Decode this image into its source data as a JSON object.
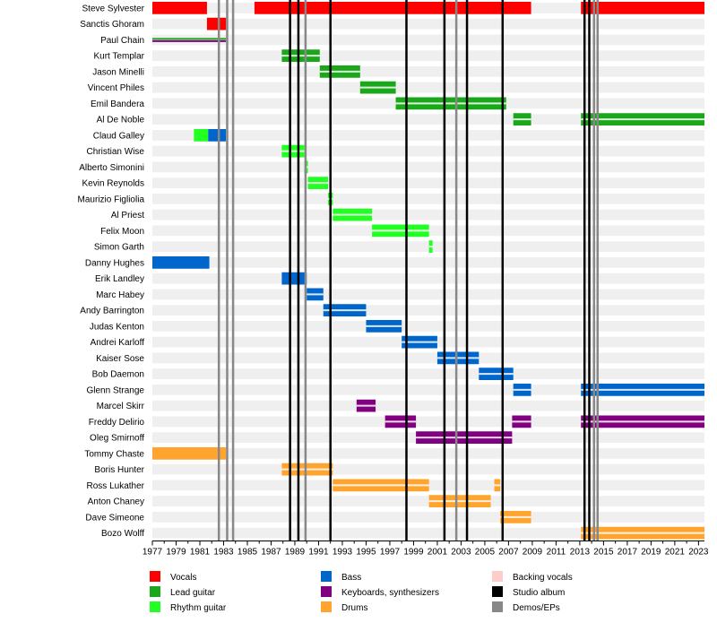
{
  "chart_data": {
    "type": "timeline",
    "x_range": [
      1977,
      2023.5
    ],
    "x_ticks": [
      1977,
      1979,
      1981,
      1983,
      1985,
      1987,
      1989,
      1991,
      1993,
      1995,
      1997,
      1999,
      2001,
      2003,
      2005,
      2007,
      2009,
      2011,
      2013,
      2015,
      2017,
      2019,
      2021,
      2023
    ],
    "roles": {
      "vocals": {
        "label": "Vocals",
        "color": "#ff0000"
      },
      "lead": {
        "label": "Lead guitar",
        "color": "#1aa81a"
      },
      "rhythm": {
        "label": "Rhythm guitar",
        "color": "#22ff22"
      },
      "bass": {
        "label": "Bass",
        "color": "#0066cc"
      },
      "keys": {
        "label": "Keyboards, synthesizers",
        "color": "#800080"
      },
      "drums": {
        "label": "Drums",
        "color": "#ffa42e"
      },
      "backing": {
        "label": "Backing vocals",
        "color": "#ffcccc"
      },
      "studio": {
        "label": "Studio album",
        "color": "#000000"
      },
      "demos": {
        "label": "Demos/EPs",
        "color": "#888888"
      }
    },
    "legend": {
      "columns": [
        [
          "vocals",
          "lead",
          "rhythm"
        ],
        [
          "bass",
          "keys",
          "drums"
        ],
        [
          "backing",
          "studio",
          "demos"
        ]
      ]
    },
    "members": [
      {
        "name": "Steve Sylvester",
        "periods": [
          {
            "role": "vocals",
            "from": 1977,
            "to": 1981.6
          },
          {
            "role": "vocals",
            "from": 1985.6,
            "to": 2008.9
          },
          {
            "role": "vocals",
            "from": 2013.1,
            "to": 2023.5
          }
        ]
      },
      {
        "name": "Sanctis Ghoram",
        "periods": [
          {
            "role": "vocals",
            "from": 1981.6,
            "to": 1983.2
          }
        ]
      },
      {
        "name": "Paul Chain",
        "periods": [
          {
            "role": "lead",
            "from": 1977,
            "to": 1983.2
          },
          {
            "role": "keys",
            "from": 1977,
            "to": 1983.2
          }
        ]
      },
      {
        "name": "Kurt Templar",
        "periods": [
          {
            "role": "lead",
            "from": 1987.9,
            "to": 1991.1
          }
        ]
      },
      {
        "name": "Jason Minelli",
        "periods": [
          {
            "role": "lead",
            "from": 1991.1,
            "to": 1994.5
          }
        ]
      },
      {
        "name": "Vincent Philes",
        "periods": [
          {
            "role": "lead",
            "from": 1994.5,
            "to": 1997.5
          }
        ]
      },
      {
        "name": "Emil Bandera",
        "periods": [
          {
            "role": "lead",
            "from": 1997.5,
            "to": 2006.8
          }
        ]
      },
      {
        "name": "Al De Noble",
        "periods": [
          {
            "role": "lead",
            "from": 2007.4,
            "to": 2008.9
          },
          {
            "role": "lead",
            "from": 2013.1,
            "to": 2023.5
          }
        ]
      },
      {
        "name": "Claud Galley",
        "periods": [
          {
            "role": "rhythm",
            "from": 1980.5,
            "to": 1981.7
          },
          {
            "role": "bass",
            "from": 1981.7,
            "to": 1983.2
          }
        ]
      },
      {
        "name": "Christian Wise",
        "periods": [
          {
            "role": "rhythm",
            "from": 1987.9,
            "to": 1989.8
          }
        ]
      },
      {
        "name": "Alberto Simonini",
        "periods": [
          {
            "role": "rhythm",
            "from": 1989.8,
            "to": 1990.1
          }
        ]
      },
      {
        "name": "Kevin Reynolds",
        "periods": [
          {
            "role": "rhythm",
            "from": 1990.1,
            "to": 1991.8
          }
        ]
      },
      {
        "name": "Maurizio Figliolia",
        "periods": [
          {
            "role": "rhythm",
            "from": 1991.8,
            "to": 1992.2
          }
        ]
      },
      {
        "name": "Al Priest",
        "periods": [
          {
            "role": "rhythm",
            "from": 1992.2,
            "to": 1995.5
          }
        ]
      },
      {
        "name": "Felix Moon",
        "periods": [
          {
            "role": "rhythm",
            "from": 1995.5,
            "to": 2000.3
          }
        ]
      },
      {
        "name": "Simon Garth",
        "periods": [
          {
            "role": "rhythm",
            "from": 2000.3,
            "to": 2000.6
          }
        ]
      },
      {
        "name": "Danny Hughes",
        "periods": [
          {
            "role": "bass",
            "from": 1977,
            "to": 1981.8
          }
        ]
      },
      {
        "name": "Erik Landley",
        "periods": [
          {
            "role": "bass",
            "from": 1987.9,
            "to": 1990
          }
        ]
      },
      {
        "name": "Marc Habey",
        "periods": [
          {
            "role": "bass",
            "from": 1990,
            "to": 1991.4
          }
        ]
      },
      {
        "name": "Andy Barrington",
        "periods": [
          {
            "role": "bass",
            "from": 1991.4,
            "to": 1995
          }
        ]
      },
      {
        "name": "Judas Kenton",
        "periods": [
          {
            "role": "bass",
            "from": 1995,
            "to": 1998
          }
        ]
      },
      {
        "name": "Andrei Karloff",
        "periods": [
          {
            "role": "bass",
            "from": 1998,
            "to": 2001
          }
        ]
      },
      {
        "name": "Kaiser Sose",
        "periods": [
          {
            "role": "bass",
            "from": 2001,
            "to": 2004.5
          }
        ]
      },
      {
        "name": "Bob Daemon",
        "periods": [
          {
            "role": "bass",
            "from": 2004.5,
            "to": 2007.4
          }
        ]
      },
      {
        "name": "Glenn Strange",
        "periods": [
          {
            "role": "bass",
            "from": 2007.4,
            "to": 2008.9
          },
          {
            "role": "bass",
            "from": 2013.1,
            "to": 2023.5
          }
        ]
      },
      {
        "name": "Marcel Skirr",
        "periods": [
          {
            "role": "keys",
            "from": 1994.2,
            "to": 1995.8
          }
        ]
      },
      {
        "name": "Freddy Delirio",
        "periods": [
          {
            "role": "keys",
            "from": 1996.6,
            "to": 1999.2
          },
          {
            "role": "keys",
            "from": 2007.3,
            "to": 2008.9
          },
          {
            "role": "keys",
            "from": 2013.1,
            "to": 2023.5
          }
        ]
      },
      {
        "name": "Oleg Smirnoff",
        "periods": [
          {
            "role": "keys",
            "from": 1999.2,
            "to": 2007.3
          }
        ]
      },
      {
        "name": "Tommy Chaste",
        "periods": [
          {
            "role": "drums",
            "from": 1977,
            "to": 1983.2
          }
        ]
      },
      {
        "name": "Boris Hunter",
        "periods": [
          {
            "role": "drums",
            "from": 1987.9,
            "to": 1992.2
          }
        ]
      },
      {
        "name": "Ross Lukather",
        "periods": [
          {
            "role": "drums",
            "from": 1992.2,
            "to": 2000.3
          },
          {
            "role": "drums",
            "from": 2005.8,
            "to": 2006.3
          }
        ]
      },
      {
        "name": "Anton Chaney",
        "periods": [
          {
            "role": "drums",
            "from": 2000.3,
            "to": 2005.5
          }
        ]
      },
      {
        "name": "Dave Simeone",
        "periods": [
          {
            "role": "drums",
            "from": 2006.3,
            "to": 2008.9
          }
        ]
      },
      {
        "name": "Bozo Wolff",
        "periods": [
          {
            "role": "drums",
            "from": 2013.1,
            "to": 2023.5
          }
        ]
      }
    ],
    "studio_albums": [
      1988.6,
      1989.3,
      1992,
      1998.4,
      2001.6,
      2003.5,
      2006.5,
      2013.4,
      2013.8
    ],
    "demos": [
      1982.6,
      1983.3,
      1983.8,
      1989.9,
      2002.6,
      2014.2,
      2014.5
    ]
  }
}
